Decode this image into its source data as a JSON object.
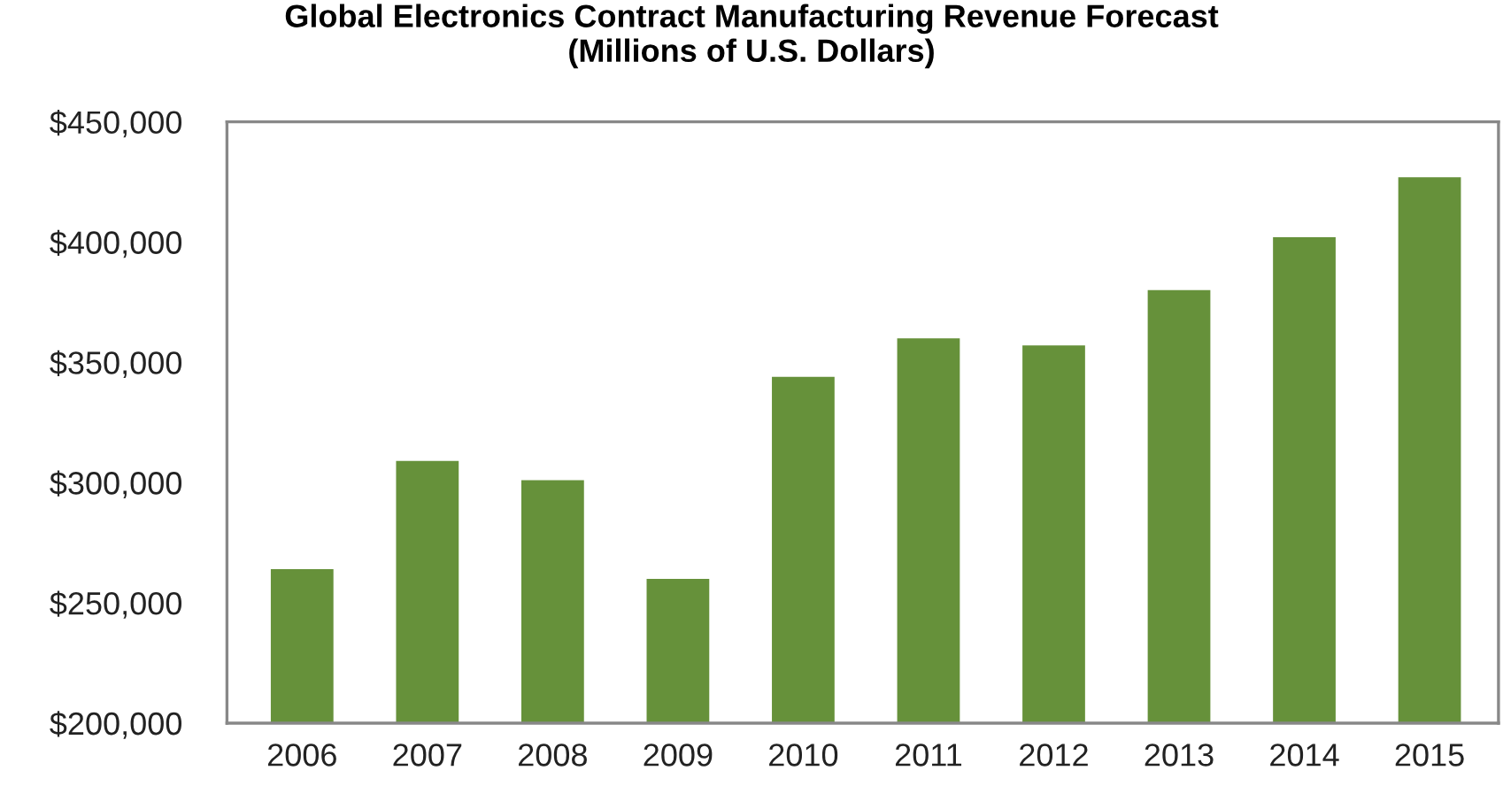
{
  "chart_data": {
    "type": "bar",
    "title": "Global Electronics Contract Manufacturing Revenue Forecast\n(Millions of U.S. Dollars)",
    "categories": [
      "2006",
      "2007",
      "2008",
      "2009",
      "2010",
      "2011",
      "2012",
      "2013",
      "2014",
      "2015"
    ],
    "values": [
      264000,
      309000,
      301000,
      260000,
      344000,
      360000,
      357000,
      380000,
      402000,
      427000
    ],
    "color": "#66913a",
    "ylim": [
      200000,
      450000
    ],
    "yticks": [
      {
        "value": 200000,
        "label": "$200,000"
      },
      {
        "value": 250000,
        "label": "$250,000"
      },
      {
        "value": 300000,
        "label": "$300,000"
      },
      {
        "value": 350000,
        "label": "$350,000"
      },
      {
        "value": 400000,
        "label": "$400,000"
      },
      {
        "value": 450000,
        "label": "$450,000"
      }
    ],
    "grid": false,
    "legend": false
  }
}
